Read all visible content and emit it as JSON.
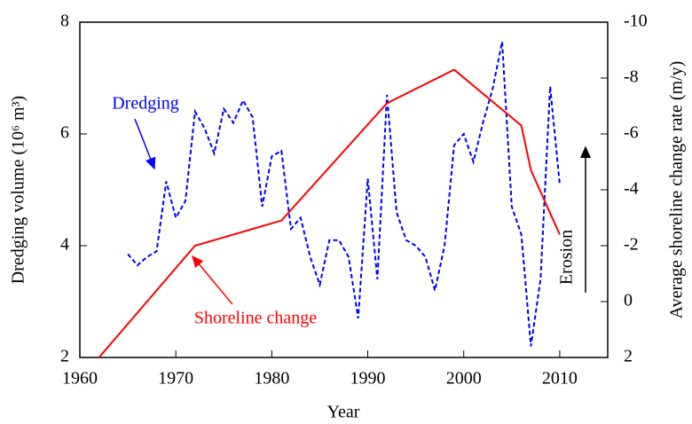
{
  "chart_data": {
    "type": "line",
    "x_label": "Year",
    "y_label": "Dredging volume (10⁶ m³)",
    "y2_label": "Average shoreline change rate (m/y)",
    "xlim": [
      1960,
      2015
    ],
    "xticks": [
      1960,
      1970,
      1980,
      1990,
      2000,
      2010
    ],
    "ylim": [
      2,
      8
    ],
    "yticks": [
      2,
      4,
      6,
      8
    ],
    "y2lim": [
      2,
      -10
    ],
    "y2ticks": [
      2,
      0,
      -2,
      -4,
      -6,
      -8,
      -10
    ],
    "series": [
      {
        "name": "Dredging",
        "color": "#0000ff",
        "dashed": true,
        "axis": "y",
        "x": [
          1965,
          1966,
          1967,
          1968,
          1969,
          1970,
          1971,
          1972,
          1973,
          1974,
          1975,
          1976,
          1977,
          1978,
          1979,
          1980,
          1981,
          1982,
          1983,
          1984,
          1985,
          1986,
          1987,
          1988,
          1989,
          1990,
          1991,
          1992,
          1993,
          1994,
          1995,
          1996,
          1997,
          1998,
          1999,
          2000,
          2001,
          2002,
          2003,
          2004,
          2005,
          2006,
          2007,
          2008,
          2009,
          2010
        ],
        "values": [
          3.85,
          3.65,
          3.8,
          3.9,
          5.15,
          4.5,
          4.8,
          6.4,
          6.1,
          5.65,
          6.45,
          6.2,
          6.6,
          6.3,
          4.7,
          5.6,
          5.7,
          4.3,
          4.5,
          3.8,
          3.3,
          4.1,
          4.1,
          3.8,
          2.7,
          5.2,
          3.4,
          6.7,
          4.6,
          4.1,
          4.0,
          3.8,
          3.2,
          4.0,
          5.8,
          6.0,
          5.5,
          6.2,
          6.8,
          7.65,
          4.7,
          4.2,
          2.2,
          3.4,
          6.85,
          5.1
        ]
      },
      {
        "name": "Shoreline change",
        "color": "#ff0000",
        "dashed": false,
        "axis": "y2",
        "x": [
          1962,
          1972,
          1981,
          1992,
          1999,
          2006,
          2007,
          2010
        ],
        "values": [
          2,
          -2,
          -2.9,
          -7.1,
          -8.3,
          -6.3,
          -4.7,
          -2.4
        ]
      }
    ],
    "annotation": "Erosion"
  }
}
